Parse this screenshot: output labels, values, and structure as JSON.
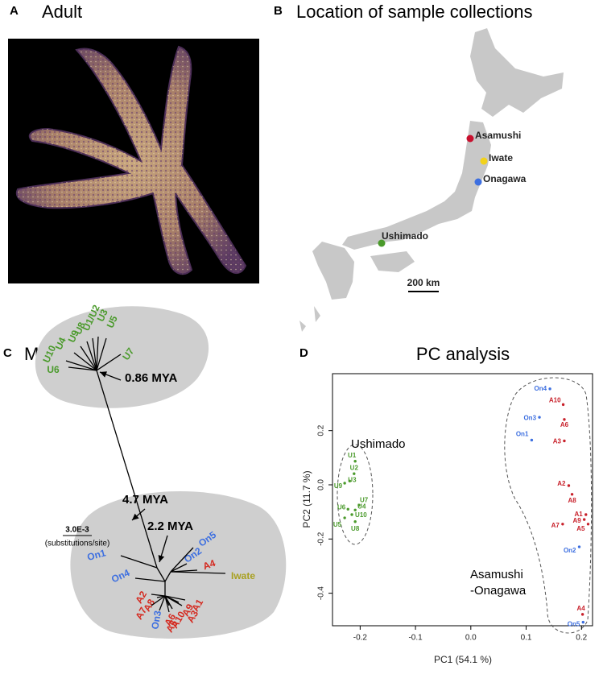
{
  "panels": {
    "a": {
      "letter": "A",
      "title": "Adult"
    },
    "b": {
      "letter": "B",
      "title": "Location of sample collections",
      "sites": [
        {
          "label": "Asamushi",
          "color": "#c8102e"
        },
        {
          "label": "Iwate",
          "color": "#f2d21b"
        },
        {
          "label": "Onagawa",
          "color": "#3d6fe0"
        },
        {
          "label": "Ushimado",
          "color": "#4a9a2b"
        }
      ],
      "scale_bar": "200 km"
    },
    "c": {
      "letter": "C",
      "title": "ML tree",
      "annotations": [
        "0.86 MYA",
        "4.7 MYA",
        "2.2 MYA"
      ],
      "scale": "3.0E-3",
      "scale_unit": "(substitutions/site)",
      "leaves": [
        {
          "label": "U10",
          "color": "#4a9a2b"
        },
        {
          "label": "U4",
          "color": "#4a9a2b"
        },
        {
          "label": "U9",
          "color": "#4a9a2b"
        },
        {
          "label": "U8",
          "color": "#4a9a2b"
        },
        {
          "label": "U1/U2",
          "color": "#4a9a2b"
        },
        {
          "label": "U3",
          "color": "#4a9a2b"
        },
        {
          "label": "U5",
          "color": "#4a9a2b"
        },
        {
          "label": "U7",
          "color": "#4a9a2b"
        },
        {
          "label": "U6",
          "color": "#4a9a2b"
        },
        {
          "label": "On1",
          "color": "#3d6fe0"
        },
        {
          "label": "On4",
          "color": "#3d6fe0"
        },
        {
          "label": "A2",
          "color": "#d42a20"
        },
        {
          "label": "A8",
          "color": "#d42a20"
        },
        {
          "label": "A7",
          "color": "#d42a20"
        },
        {
          "label": "On3",
          "color": "#3d6fe0"
        },
        {
          "label": "A6",
          "color": "#d42a20"
        },
        {
          "label": "A10",
          "color": "#d42a20"
        },
        {
          "label": "A5",
          "color": "#d42a20"
        },
        {
          "label": "A9",
          "color": "#d42a20"
        },
        {
          "label": "A3",
          "color": "#d42a20"
        },
        {
          "label": "A1",
          "color": "#d42a20"
        },
        {
          "label": "On2",
          "color": "#3d6fe0"
        },
        {
          "label": "A4",
          "color": "#d42a20"
        },
        {
          "label": "Iwate",
          "color": "#a8a020"
        },
        {
          "label": "On5",
          "color": "#3d6fe0"
        }
      ]
    },
    "d": {
      "letter": "D"
    }
  },
  "chart_data": {
    "type": "scatter",
    "title": "PC analysis",
    "x_label": "PC1 (54.1 %)",
    "y_label": "PC2 (11.7 %)",
    "annotations": [
      "Ushimado",
      "Asamushi",
      "-Onagawa"
    ],
    "xlim": [
      -0.25,
      0.22
    ],
    "ylim": [
      -0.52,
      0.41
    ],
    "xticks": [
      -0.2,
      -0.1,
      {
        "value": 0,
        "label": "0.0"
      },
      0.1,
      0.2
    ],
    "yticks": [
      0.2,
      {
        "value": 0,
        "label": "0.0"
      },
      -0.2,
      -0.4
    ],
    "series": [
      {
        "color": "#4a9a2b",
        "labels": [
          "U1",
          "U2",
          "U3",
          "U9",
          "U7",
          "U6",
          "U4",
          "U10",
          "U5",
          "U8"
        ],
        "x": [
          -0.209,
          -0.211,
          -0.219,
          -0.228,
          -0.202,
          -0.222,
          -0.209,
          -0.215,
          -0.228,
          -0.209
        ],
        "values": [
          0.087,
          0.041,
          0.014,
          0.006,
          -0.075,
          -0.09,
          -0.093,
          -0.11,
          -0.122,
          -0.136
        ]
      },
      {
        "color": "#c8202a",
        "labels": [
          "A10",
          "A6",
          "A3",
          "A2",
          "A8",
          "A1",
          "A9",
          "A5",
          "A7",
          "A4"
        ],
        "x": [
          0.167,
          0.169,
          0.169,
          0.177,
          0.183,
          0.208,
          0.205,
          0.212,
          0.166,
          0.202
        ],
        "values": [
          0.296,
          0.241,
          0.162,
          -0.003,
          -0.035,
          -0.11,
          -0.128,
          -0.145,
          -0.145,
          -0.478
        ]
      },
      {
        "color": "#3d6fe0",
        "labels": [
          "On4",
          "On3",
          "On1",
          "On2",
          "On5"
        ],
        "x": [
          0.143,
          0.124,
          0.11,
          0.196,
          0.203
        ],
        "values": [
          0.354,
          0.249,
          0.165,
          -0.229,
          -0.507
        ]
      }
    ]
  }
}
